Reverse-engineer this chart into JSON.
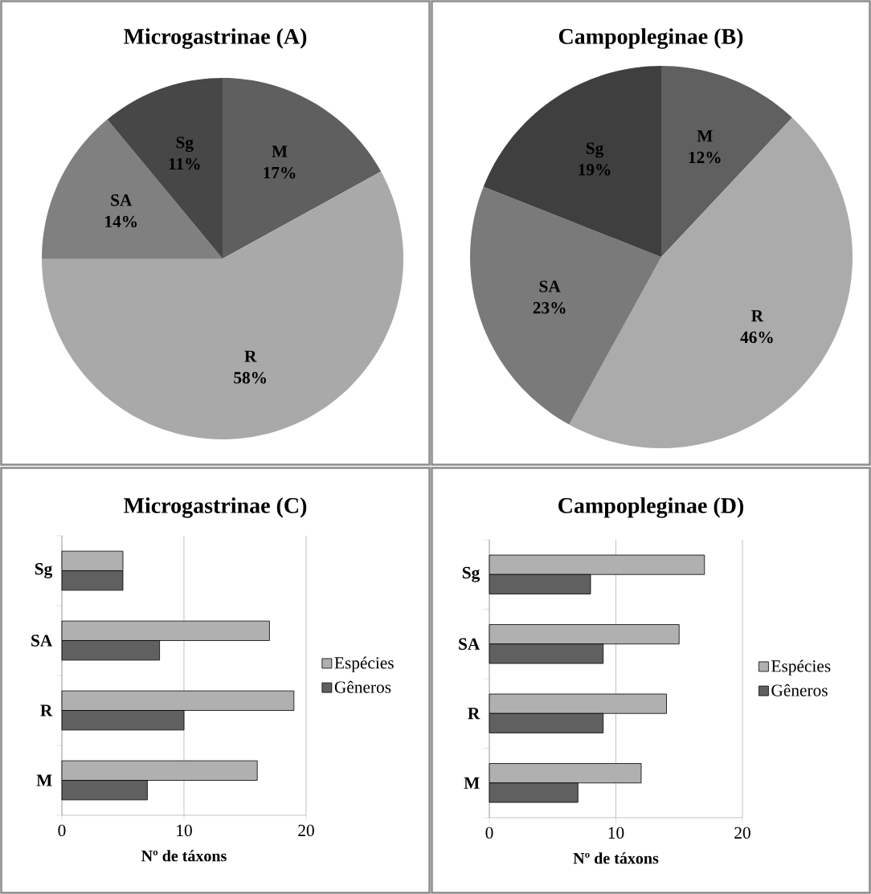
{
  "chart_data": [
    {
      "type": "pie",
      "title": "Microgastrinae (A)",
      "categories": [
        "M",
        "R",
        "SA",
        "Sg"
      ],
      "values": [
        17,
        58,
        14,
        11
      ],
      "value_labels": [
        "17%",
        "58%",
        "14%",
        "11%"
      ],
      "colors": [
        "#5f5f5f",
        "#a9a9a9",
        "#808080",
        "#474747"
      ]
    },
    {
      "type": "pie",
      "title": "Campopleginae (B)",
      "categories": [
        "M",
        "R",
        "SA",
        "Sg"
      ],
      "values": [
        12,
        46,
        23,
        19
      ],
      "value_labels": [
        "12%",
        "46%",
        "23%",
        "19%"
      ],
      "colors": [
        "#606060",
        "#ababab",
        "#7a7a7a",
        "#3f3f3f"
      ]
    },
    {
      "type": "bar",
      "orientation": "horizontal",
      "title": "Microgastrinae (C)",
      "xlabel": "Nº de táxons",
      "categories": [
        "Sg",
        "SA",
        "R",
        "M"
      ],
      "series": [
        {
          "name": "Espécies",
          "color": "#b0b0b0",
          "values": [
            5,
            17,
            19,
            16
          ]
        },
        {
          "name": "Gêneros",
          "color": "#606060",
          "values": [
            5,
            8,
            10,
            7
          ]
        }
      ],
      "xlim": [
        0,
        20
      ],
      "xticks": [
        0,
        10,
        20
      ],
      "grid": "x",
      "legend": "right"
    },
    {
      "type": "bar",
      "orientation": "horizontal",
      "title": "Campopleginae (D)",
      "xlabel": "Nº de táxons",
      "categories": [
        "Sg",
        "SA",
        "R",
        "M"
      ],
      "series": [
        {
          "name": "Espécies",
          "color": "#b0b0b0",
          "values": [
            17,
            15,
            14,
            12
          ]
        },
        {
          "name": "Gêneros",
          "color": "#606060",
          "values": [
            8,
            9,
            9,
            7
          ]
        }
      ],
      "xlim": [
        0,
        20
      ],
      "xticks": [
        0,
        10,
        20
      ],
      "grid": "x",
      "legend": "right"
    }
  ]
}
